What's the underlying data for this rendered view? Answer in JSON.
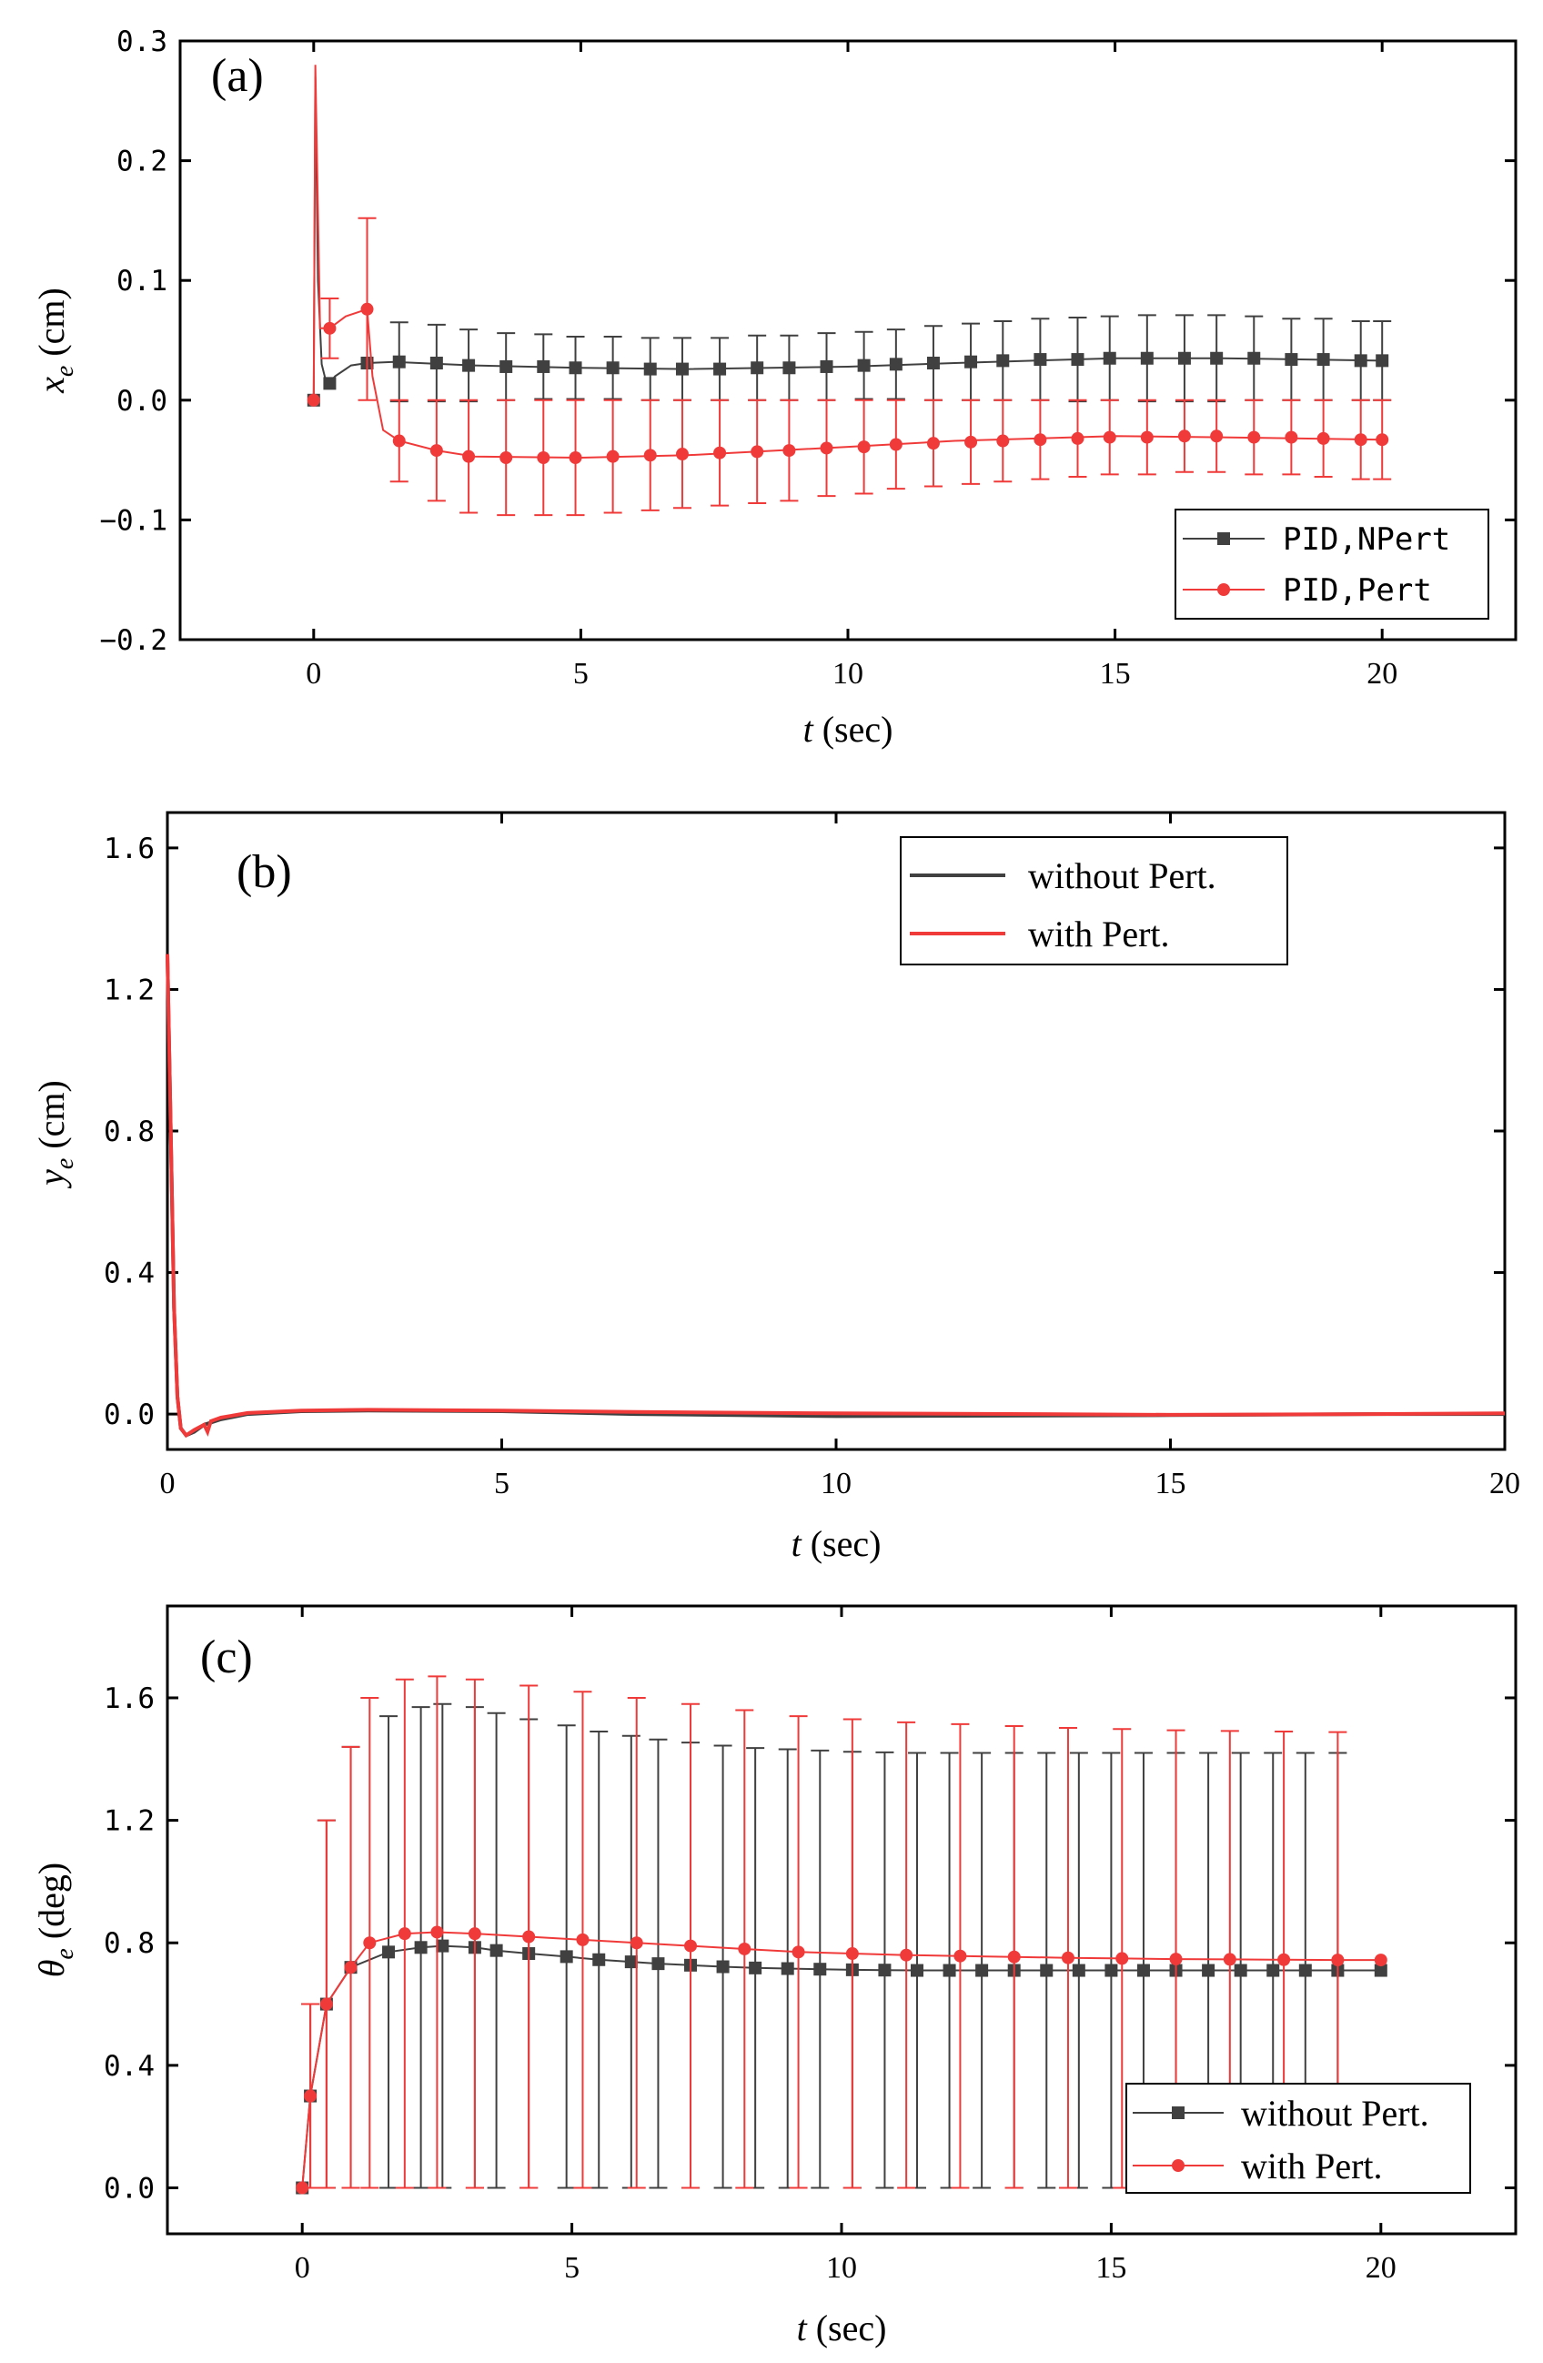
{
  "colors": {
    "black_series": "#404040",
    "red_series": "#f03a3a",
    "axis": "#000000"
  },
  "chart_data": [
    {
      "id": "a",
      "type": "line",
      "panel_label": "(a)",
      "xlabel_italic": "t",
      "xlabel_rest": " (sec)",
      "ylabel_main": "x",
      "ylabel_sub": "e",
      "ylabel_rest": " (cm)",
      "xlim": [
        -2.5,
        22.5
      ],
      "ylim": [
        -0.2,
        0.3
      ],
      "xticks": [
        0,
        5,
        10,
        15,
        20
      ],
      "xtick_labels": [
        "0",
        "5",
        "10",
        "15",
        "20"
      ],
      "yticks": [
        -0.2,
        -0.1,
        0.0,
        0.1,
        0.2,
        0.3
      ],
      "ytick_labels": [
        "−0.2",
        "−0.1",
        "0.0",
        "0.1",
        "0.2",
        "0.3"
      ],
      "legend_position": "bottom-right",
      "series": [
        {
          "name": "PID, NPert",
          "legend_left": "PID",
          "legend_sep": ",",
          "legend_right": "NPert",
          "color_key": "black_series",
          "marker": "square",
          "curve": [
            [
              0,
              0.0
            ],
            [
              0.03,
              0.27
            ],
            [
              0.08,
              0.1
            ],
            [
              0.15,
              0.03
            ],
            [
              0.25,
              0.012
            ],
            [
              0.4,
              0.02
            ],
            [
              0.7,
              0.029
            ],
            [
              1.0,
              0.031
            ],
            [
              1.5,
              0.032
            ],
            [
              3,
              0.029
            ],
            [
              5,
              0.027
            ],
            [
              7,
              0.026
            ],
            [
              10,
              0.028
            ],
            [
              12,
              0.031
            ],
            [
              15,
              0.035
            ],
            [
              17,
              0.035
            ],
            [
              20,
              0.033
            ]
          ],
          "x": [
            0,
            0.3,
            1.0,
            1.6,
            2.3,
            2.9,
            3.6,
            4.3,
            4.9,
            5.6,
            6.3,
            6.9,
            7.6,
            8.3,
            8.9,
            9.6,
            10.3,
            10.9,
            11.6,
            12.3,
            12.9,
            13.6,
            14.3,
            14.9,
            15.6,
            16.3,
            16.9,
            17.6,
            18.3,
            18.9,
            19.6,
            20.0
          ],
          "y": [
            0.0,
            0.014,
            0.031,
            0.032,
            0.031,
            0.029,
            0.028,
            0.028,
            0.027,
            0.027,
            0.026,
            0.026,
            0.026,
            0.027,
            0.027,
            0.028,
            0.029,
            0.03,
            0.031,
            0.032,
            0.033,
            0.034,
            0.034,
            0.035,
            0.035,
            0.035,
            0.035,
            0.035,
            0.034,
            0.034,
            0.033,
            0.033
          ],
          "err": [
            0,
            0,
            0,
            0.033,
            0.032,
            0.03,
            0.028,
            0.027,
            0.026,
            0.026,
            0.026,
            0.026,
            0.026,
            0.027,
            0.027,
            0.028,
            0.028,
            0.029,
            0.031,
            0.032,
            0.033,
            0.034,
            0.035,
            0.035,
            0.036,
            0.036,
            0.036,
            0.035,
            0.034,
            0.034,
            0.033,
            0.033
          ]
        },
        {
          "name": "PID, Pert",
          "legend_left": "PID",
          "legend_sep": ",",
          "legend_right": "Pert",
          "color_key": "red_series",
          "marker": "circle",
          "curve": [
            [
              0,
              0.0
            ],
            [
              0.03,
              0.28
            ],
            [
              0.12,
              0.06
            ],
            [
              0.3,
              0.06
            ],
            [
              0.6,
              0.07
            ],
            [
              1.0,
              0.076
            ],
            [
              1.1,
              0.02
            ],
            [
              1.3,
              -0.025
            ],
            [
              1.6,
              -0.034
            ],
            [
              2.3,
              -0.042
            ],
            [
              3,
              -0.047
            ],
            [
              5,
              -0.048
            ],
            [
              7,
              -0.046
            ],
            [
              10,
              -0.039
            ],
            [
              12,
              -0.034
            ],
            [
              15,
              -0.03
            ],
            [
              17,
              -0.031
            ],
            [
              20,
              -0.033
            ]
          ],
          "x": [
            0,
            0.3,
            1.0,
            1.6,
            2.3,
            2.9,
            3.6,
            4.3,
            4.9,
            5.6,
            6.3,
            6.9,
            7.6,
            8.3,
            8.9,
            9.6,
            10.3,
            10.9,
            11.6,
            12.3,
            12.9,
            13.6,
            14.3,
            14.9,
            15.6,
            16.3,
            16.9,
            17.6,
            18.3,
            18.9,
            19.6,
            20.0
          ],
          "y": [
            0.0,
            0.06,
            0.076,
            -0.034,
            -0.042,
            -0.047,
            -0.048,
            -0.048,
            -0.048,
            -0.047,
            -0.046,
            -0.045,
            -0.044,
            -0.043,
            -0.042,
            -0.04,
            -0.039,
            -0.037,
            -0.036,
            -0.035,
            -0.034,
            -0.033,
            -0.032,
            -0.031,
            -0.031,
            -0.03,
            -0.03,
            -0.031,
            -0.031,
            -0.032,
            -0.033,
            -0.033
          ],
          "err": [
            0,
            0.025,
            0.076,
            0.034,
            0.042,
            0.047,
            0.048,
            0.048,
            0.048,
            0.047,
            0.046,
            0.045,
            0.044,
            0.043,
            0.042,
            0.04,
            0.039,
            0.037,
            0.036,
            0.035,
            0.034,
            0.033,
            0.032,
            0.031,
            0.031,
            0.03,
            0.03,
            0.031,
            0.031,
            0.032,
            0.033,
            0.033
          ]
        }
      ]
    },
    {
      "id": "b",
      "type": "line",
      "panel_label": "(b)",
      "xlabel_italic": "t",
      "xlabel_rest": " (sec)",
      "ylabel_main": "y",
      "ylabel_sub": "e",
      "ylabel_rest": " (cm)",
      "xlim": [
        0,
        20
      ],
      "ylim": [
        -0.1,
        1.7
      ],
      "xticks": [
        0,
        5,
        10,
        15,
        20
      ],
      "xtick_labels": [
        "0",
        "5",
        "10",
        "15",
        "20"
      ],
      "yticks": [
        0.0,
        0.4,
        0.8,
        1.2,
        1.6
      ],
      "ytick_labels": [
        "0.0",
        "0.4",
        "0.8",
        "1.2",
        "1.6"
      ],
      "legend_position": "top-right",
      "series": [
        {
          "name": "without Pert.",
          "color_key": "black_series",
          "curve": [
            [
              0,
              1.3
            ],
            [
              0.05,
              0.8
            ],
            [
              0.1,
              0.3
            ],
            [
              0.15,
              0.05
            ],
            [
              0.2,
              -0.04
            ],
            [
              0.28,
              -0.06
            ],
            [
              0.4,
              -0.05
            ],
            [
              0.55,
              -0.03
            ],
            [
              0.8,
              -0.015
            ],
            [
              1.2,
              0.0
            ],
            [
              2,
              0.008
            ],
            [
              3,
              0.01
            ],
            [
              5,
              0.008
            ],
            [
              7,
              0.0
            ],
            [
              10,
              -0.006
            ],
            [
              13,
              -0.004
            ],
            [
              15,
              -0.003
            ],
            [
              18,
              0.0
            ],
            [
              20,
              0.0
            ]
          ]
        },
        {
          "name": "with Pert.",
          "color_key": "red_series",
          "curve": [
            [
              0,
              1.3
            ],
            [
              0.05,
              0.8
            ],
            [
              0.1,
              0.3
            ],
            [
              0.15,
              0.05
            ],
            [
              0.2,
              -0.04
            ],
            [
              0.28,
              -0.06
            ],
            [
              0.4,
              -0.045
            ],
            [
              0.55,
              -0.03
            ],
            [
              0.6,
              -0.05
            ],
            [
              0.65,
              -0.02
            ],
            [
              0.8,
              -0.01
            ],
            [
              1.2,
              0.003
            ],
            [
              2,
              0.01
            ],
            [
              3,
              0.012
            ],
            [
              5,
              0.01
            ],
            [
              7,
              0.006
            ],
            [
              10,
              0.002
            ],
            [
              13,
              0.0
            ],
            [
              15,
              -0.002
            ],
            [
              18,
              0.0
            ],
            [
              20,
              0.002
            ]
          ]
        }
      ]
    },
    {
      "id": "c",
      "type": "line",
      "panel_label": "(c)",
      "xlabel_italic": "t",
      "xlabel_rest": " (sec)",
      "ylabel_main": "θ",
      "ylabel_sub": "e",
      "ylabel_rest": " (deg)",
      "xlim": [
        -2.5,
        22.5
      ],
      "ylim": [
        -0.15,
        1.9
      ],
      "xticks": [
        0,
        5,
        10,
        15,
        20
      ],
      "xtick_labels": [
        "0",
        "5",
        "10",
        "15",
        "20"
      ],
      "yticks": [
        0.0,
        0.4,
        0.8,
        1.2,
        1.6
      ],
      "ytick_labels": [
        "0.0",
        "0.4",
        "0.8",
        "1.2",
        "1.6"
      ],
      "legend_position": "bottom-right",
      "series": [
        {
          "name": "without Pert.",
          "color_key": "black_series",
          "marker": "square",
          "x": [
            0,
            0.15,
            0.45,
            0.9,
            1.6,
            2.2,
            2.6,
            3.2,
            3.6,
            4.2,
            4.9,
            5.5,
            6.1,
            6.6,
            7.2,
            7.8,
            8.4,
            9.0,
            9.6,
            10.2,
            10.8,
            11.4,
            12.0,
            12.6,
            13.2,
            13.8,
            14.4,
            15.0,
            15.6,
            16.2,
            16.8,
            17.4,
            18.0,
            18.6,
            19.2,
            20.0
          ],
          "y": [
            0.0,
            0.3,
            0.6,
            0.72,
            0.77,
            0.785,
            0.79,
            0.785,
            0.775,
            0.765,
            0.755,
            0.745,
            0.738,
            0.732,
            0.727,
            0.722,
            0.718,
            0.716,
            0.714,
            0.712,
            0.711,
            0.71,
            0.71,
            0.71,
            0.71,
            0.71,
            0.71,
            0.71,
            0.71,
            0.71,
            0.71,
            0.71,
            0.71,
            0.71,
            0.71,
            0.71
          ],
          "err": [
            0,
            0.3,
            0.6,
            0.72,
            0.77,
            0.785,
            0.79,
            0.785,
            0.775,
            0.765,
            0.755,
            0.745,
            0.738,
            0.732,
            0.727,
            0.722,
            0.718,
            0.716,
            0.714,
            0.712,
            0.711,
            0.71,
            0.71,
            0.71,
            0.71,
            0.71,
            0.71,
            0.71,
            0.71,
            0.71,
            0.71,
            0.71,
            0.71,
            0.71,
            0.71,
            0
          ]
        },
        {
          "name": "with Pert.",
          "color_key": "red_series",
          "marker": "circle",
          "x": [
            0,
            0.15,
            0.45,
            0.9,
            1.25,
            1.9,
            2.5,
            3.2,
            4.2,
            5.2,
            6.2,
            7.2,
            8.2,
            9.2,
            10.2,
            11.2,
            12.2,
            13.2,
            14.2,
            15.2,
            16.2,
            17.2,
            18.2,
            19.2,
            20.0
          ],
          "y": [
            0.0,
            0.3,
            0.6,
            0.72,
            0.8,
            0.83,
            0.835,
            0.83,
            0.82,
            0.81,
            0.8,
            0.79,
            0.78,
            0.77,
            0.765,
            0.76,
            0.757,
            0.754,
            0.751,
            0.749,
            0.747,
            0.746,
            0.745,
            0.744,
            0.744
          ],
          "err": [
            0,
            0.3,
            0.6,
            0.72,
            0.8,
            0.83,
            0.835,
            0.83,
            0.82,
            0.81,
            0.8,
            0.79,
            0.78,
            0.77,
            0.765,
            0.76,
            0.757,
            0.754,
            0.751,
            0.749,
            0.747,
            0.746,
            0.745,
            0.744,
            0
          ]
        }
      ]
    }
  ]
}
